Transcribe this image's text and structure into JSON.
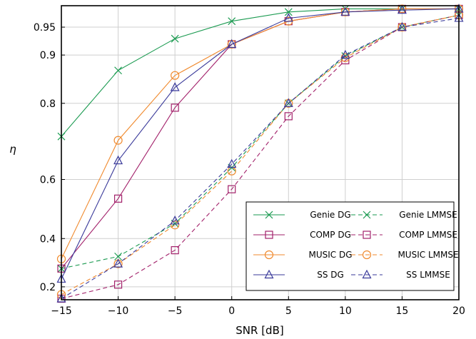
{
  "chart_data": {
    "type": "line",
    "xlabel": "SNR [dB]",
    "ylabel": "η",
    "xlim": [
      -15,
      20
    ],
    "ylim": [
      0.14,
      0.985
    ],
    "x_ticks": [
      -15,
      -10,
      -5,
      0,
      5,
      10,
      15,
      20
    ],
    "x_tick_labels": [
      "−15",
      "−10",
      "−5",
      "0",
      "5",
      "10",
      "15",
      "20"
    ],
    "y_ticks": [
      0.2,
      0.4,
      0.6,
      0.8,
      0.9,
      0.95
    ],
    "y_tick_labels": [
      "0.2",
      "0.4",
      "0.6",
      "0.8",
      "0.9",
      "0.95"
    ],
    "y_scale": "nonlinear (1-η spacing, compressed near 1)",
    "grid": true,
    "legend_position": "bottom-right",
    "x": [
      -15,
      -10,
      -5,
      0,
      5,
      10,
      15,
      20
    ],
    "series": [
      {
        "name": "Genie DG",
        "color": "#1a9a50",
        "marker": "x",
        "dash": "solid",
        "values": [
          0.72,
          0.87,
          0.93,
          0.96,
          0.975,
          0.98,
          0.98,
          0.98
        ]
      },
      {
        "name": "Genie LMMSE",
        "color": "#1a9a50",
        "marker": "x",
        "dash": "dashed",
        "values": [
          0.28,
          0.33,
          0.455,
          0.635,
          0.8,
          0.898,
          0.95,
          0.97
        ]
      },
      {
        "name": "COMP DG",
        "color": "#a2206a",
        "marker": "square",
        "dash": "solid",
        "values": [
          0.28,
          0.54,
          0.79,
          0.92,
          0.96,
          0.975,
          0.98,
          0.98
        ]
      },
      {
        "name": "COMP LMMSE",
        "color": "#a2206a",
        "marker": "square",
        "dash": "dashed",
        "values": [
          0.145,
          0.21,
          0.355,
          0.57,
          0.77,
          0.89,
          0.95,
          0.97
        ]
      },
      {
        "name": "MUSIC DG",
        "color": "#f08a2e",
        "marker": "circle",
        "dash": "solid",
        "values": [
          0.32,
          0.71,
          0.86,
          0.92,
          0.96,
          0.975,
          0.98,
          0.98
        ]
      },
      {
        "name": "MUSIC LMMSE",
        "color": "#f08a2e",
        "marker": "circle",
        "dash": "dashed",
        "values": [
          0.165,
          0.3,
          0.45,
          0.625,
          0.8,
          0.895,
          0.95,
          0.97
        ]
      },
      {
        "name": "SS DG",
        "color": "#3a3a9a",
        "marker": "triangle",
        "dash": "solid",
        "values": [
          0.235,
          0.655,
          0.835,
          0.92,
          0.965,
          0.975,
          0.978,
          0.98
        ]
      },
      {
        "name": "SS LMMSE",
        "color": "#3a3a9a",
        "marker": "triangle",
        "dash": "dashed",
        "values": [
          0.145,
          0.3,
          0.465,
          0.645,
          0.8,
          0.9,
          0.95,
          0.965
        ]
      }
    ]
  }
}
